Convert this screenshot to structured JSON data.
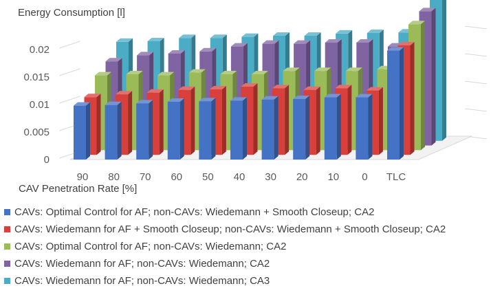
{
  "chart_data": {
    "type": "bar",
    "subtype": "3d-column-series-in-depth",
    "title": "",
    "ylabel": "Energy Consumption [l]",
    "xlabel": "CAV Penetration Rate [%]",
    "categories": [
      "90",
      "80",
      "70",
      "60",
      "50",
      "40",
      "30",
      "20",
      "10",
      "0",
      "TLC"
    ],
    "ylim": [
      0,
      0.025
    ],
    "yticks": [
      "0",
      "0.005",
      "0.01",
      "0.015",
      "0.02"
    ],
    "ytick_values": [
      0,
      0.005,
      0.01,
      0.015,
      0.02
    ],
    "grid": true,
    "legend_position": "bottom",
    "series": [
      {
        "name": "CAVs: Optimal Control for AF; non-CAVs: Wiedemann + Smooth Closeup; CA2",
        "color": "#4472c4",
        "values": [
          0.0098,
          0.0099,
          0.0102,
          0.0105,
          0.0106,
          0.0107,
          0.0109,
          0.011,
          0.0113,
          0.0113,
          0.0198
        ]
      },
      {
        "name": "CAVs: Wiedemann for AF + Smooth Closeup; non-CAVs: Wiedemann + Smooth Closeup; CA2",
        "color": "#d9403b",
        "values": [
          0.0105,
          0.011,
          0.0113,
          0.0118,
          0.0119,
          0.0124,
          0.0121,
          0.0118,
          0.0121,
          0.0117,
          0.0199
        ]
      },
      {
        "name": "CAVs: Optimal Control for AF; non-CAVs: Wiedemann; CA2",
        "color": "#9bbb59",
        "values": [
          0.0136,
          0.0138,
          0.0136,
          0.0141,
          0.0138,
          0.0138,
          0.0144,
          0.0144,
          0.0144,
          0.0147,
          0.0229
        ]
      },
      {
        "name": "CAVs: Wiedemann for AF; non-CAVs: Wiedemann; CA2",
        "color": "#8064a2",
        "values": [
          0.0153,
          0.0164,
          0.0167,
          0.0171,
          0.018,
          0.0185,
          0.0185,
          0.0187,
          0.0187,
          0.018,
          0.0244
        ]
      },
      {
        "name": "CAVs: Wiedemann for AF; non-CAVs: Wiedemann; CA3",
        "color": "#4bacc6",
        "values": [
          0.018,
          0.0181,
          0.0187,
          0.0187,
          0.0189,
          0.0191,
          0.0191,
          0.0195,
          0.0196,
          0.0197,
          0.0256
        ]
      }
    ]
  }
}
